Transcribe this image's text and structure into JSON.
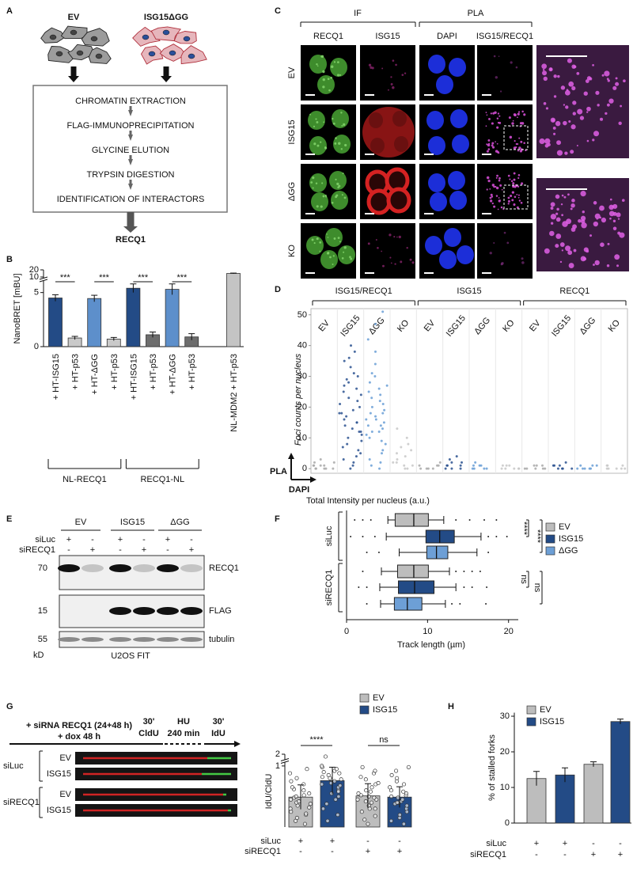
{
  "panel_labels": [
    "A",
    "B",
    "C",
    "D",
    "E",
    "F",
    "G",
    "H"
  ],
  "panel_a": {
    "groups": [
      "EV",
      "ISG15ΔGG"
    ],
    "steps": [
      "CHROMATIN EXTRACTION",
      "FLAG-IMMUNOPRECIPITATION",
      "GLYCINE ELUTION",
      "TRYPSIN DIGESTION",
      "IDENTIFICATION OF INTERACTORS"
    ],
    "result": "RECQ1"
  },
  "panel_c": {
    "sections": [
      "IF",
      "PLA"
    ],
    "columns": [
      "RECQ1",
      "ISG15",
      "DAPI",
      "ISG15/RECQ1"
    ],
    "rows": [
      "EV",
      "ISG15",
      "ΔGG",
      "KO"
    ]
  },
  "panel_e": {
    "conditions": [
      "EV",
      "ISG15",
      "ΔGG"
    ],
    "rows": [
      {
        "name": "siLuc",
        "signs": [
          "+",
          "-",
          "+",
          "-",
          "+",
          "-"
        ]
      },
      {
        "name": "siRECQ1",
        "signs": [
          "-",
          "+",
          "-",
          "+",
          "-",
          "+"
        ]
      }
    ],
    "markers": [
      "70",
      "15",
      "55"
    ],
    "unit": "kD",
    "blots": [
      "RECQ1",
      "FLAG",
      "tubulin"
    ],
    "cell_line": "U2OS FIT"
  },
  "panel_g": {
    "treatment": [
      "+ siRNA RECQ1 (24+48 h)",
      "+ dox 48 h"
    ],
    "steps": [
      {
        "time": "30'",
        "label": "CldU"
      },
      {
        "time": "HU",
        "label": "240 min"
      },
      {
        "time": "30'",
        "label": "IdU"
      }
    ],
    "groups": [
      {
        "name": "siLuc",
        "rows": [
          "EV",
          "ISG15"
        ]
      },
      {
        "name": "siRECQ1",
        "rows": [
          "EV",
          "ISG15"
        ]
      }
    ]
  },
  "chart_data": [
    {
      "type": "bar",
      "ylabel": "NanoBRET [mBU]",
      "categories": [
        "+ HT-ISG15",
        "+ HT-p53",
        "+ HT-ΔGG",
        "+ HT-p53",
        "+ HT-ISG15",
        "+ HT-p53",
        "+ HT-ΔGG",
        "+ HT-p53",
        "NL-MDM2 + HT-p53"
      ],
      "values": [
        4.5,
        0.8,
        4.45,
        0.7,
        5.4,
        1.1,
        5.3,
        0.9,
        15
      ],
      "errors": [
        0.3,
        0.15,
        0.3,
        0.15,
        0.4,
        0.25,
        0.5,
        0.3,
        0.5
      ],
      "colors": [
        "#234b86",
        "#c9c9c9",
        "#5d8fcb",
        "#c9c9c9",
        "#234b86",
        "#6d6d6d",
        "#5d8fcb",
        "#6d6d6d",
        "#c4c4c4"
      ],
      "ylim": [
        0,
        20
      ],
      "ybreak": [
        6,
        10
      ],
      "yticks": [
        0,
        5,
        10,
        20
      ],
      "groups": [
        "NL-RECQ1",
        "RECQ1-NL"
      ],
      "annotations": [
        "***",
        "***",
        "***",
        "***"
      ]
    },
    {
      "type": "strip",
      "y_marker": "PLA",
      "ylabel": "Foci counts per nucleus",
      "x_marker": "DAPI",
      "xlabel": "Total Intensity per nucleus (a.u.)",
      "ylim": [
        -1.5,
        52
      ],
      "yticks": [
        0,
        10,
        20,
        30,
        40,
        50
      ],
      "colors": [
        "#a9a9a9",
        "#2b5290",
        "#6a9fd6",
        "#c8c8c8"
      ],
      "groups": [
        {
          "name": "ISG15/RECQ1",
          "categories": [
            "EV",
            "ISG15",
            "ΔGG",
            "KO"
          ],
          "values": [
            [
              0,
              1,
              0,
              2,
              1,
              0,
              3,
              1,
              0,
              2,
              1,
              0
            ],
            [
              0,
              2,
              5,
              8,
              12,
              15,
              18,
              20,
              22,
              25,
              28,
              30,
              33,
              36,
              40,
              10,
              14,
              17,
              19,
              21,
              23,
              16,
              13,
              11,
              9,
              7,
              6,
              4,
              3,
              1,
              24,
              26,
              27,
              29,
              31,
              35,
              38,
              12,
              15,
              18
            ],
            [
              0,
              3,
              6,
              9,
              12,
              14,
              16,
              18,
              20,
              22,
              24,
              26,
              28,
              31,
              34,
              38,
              42,
              47,
              51,
              10,
              13,
              15,
              17,
              19,
              21,
              23,
              8,
              5,
              2,
              1,
              11,
              14,
              16,
              25,
              27,
              30,
              12,
              18
            ],
            [
              0,
              1,
              2,
              4,
              6,
              8,
              10,
              3,
              5,
              1,
              2,
              0,
              7,
              13
            ]
          ]
        },
        {
          "name": "ISG15",
          "categories": [
            "EV",
            "ISG15",
            "ΔGG",
            "KO"
          ],
          "values": [
            [
              0,
              1,
              0,
              1,
              0,
              2,
              1,
              0
            ],
            [
              0,
              1,
              2,
              3,
              1,
              0,
              2,
              4,
              1,
              0
            ],
            [
              0,
              1,
              0,
              2,
              1,
              0,
              1,
              0
            ],
            [
              0,
              1,
              0,
              1,
              0,
              0,
              1,
              0
            ]
          ]
        },
        {
          "name": "RECQ1",
          "categories": [
            "EV",
            "ISG15",
            "ΔGG",
            "KO"
          ],
          "values": [
            [
              0,
              1,
              0,
              1,
              0,
              1,
              0,
              0
            ],
            [
              0,
              1,
              0,
              1,
              2,
              0,
              1,
              0
            ],
            [
              0,
              0,
              1,
              0,
              1,
              0,
              1,
              0
            ],
            [
              0,
              1,
              0,
              0,
              1,
              0,
              1,
              0
            ]
          ]
        }
      ]
    },
    {
      "type": "box",
      "xlabel": "Track length (µm)",
      "xlim": [
        0,
        21.2
      ],
      "xticks": [
        0,
        10,
        20
      ],
      "groups": [
        "siLuc",
        "siRECQ1"
      ],
      "series": [
        {
          "name": "EV",
          "color": "#bdbdbd"
        },
        {
          "name": "ISG15",
          "color": "#234b86"
        },
        {
          "name": "ΔGG",
          "color": "#6d9fd6"
        }
      ],
      "boxes": [
        {
          "min": 5.1,
          "q1": 6.0,
          "median": 8.3,
          "q3": 10.1,
          "max": 12.0,
          "outliers": [
            1.0,
            2.0,
            3.0,
            13.5,
            15.2,
            17.0,
            18.5
          ]
        },
        {
          "min": 4.9,
          "q1": 9.8,
          "median": 11.5,
          "q3": 13.3,
          "max": 16.6,
          "outliers": [
            0.5,
            2.0,
            3.5,
            17.5,
            18.5,
            19.8
          ]
        },
        {
          "min": 6.5,
          "q1": 9.9,
          "median": 11.1,
          "q3": 12.5,
          "max": 16.1,
          "outliers": [
            2.5,
            4.0,
            17.5
          ]
        },
        {
          "min": 4.3,
          "q1": 6.3,
          "median": 8.3,
          "q3": 10.1,
          "max": 12.7,
          "outliers": [
            2.0,
            13.5,
            14.5,
            15.5,
            16.5
          ]
        },
        {
          "min": 4.1,
          "q1": 6.4,
          "median": 8.4,
          "q3": 10.8,
          "max": 13.5,
          "outliers": [
            1.5,
            2.5,
            14.5,
            15.5,
            17.3
          ]
        },
        {
          "min": 4.2,
          "q1": 5.9,
          "median": 7.5,
          "q3": 9.3,
          "max": 12.2,
          "outliers": [
            2.5,
            13.0,
            14.0,
            17.2
          ]
        }
      ],
      "annotations": [
        "****",
        "****",
        "ns",
        "ns"
      ]
    },
    {
      "type": "bar",
      "ylabel": "IdU/CldU",
      "ylim": [
        0,
        2
      ],
      "ybreak": [
        1.05,
        1.9
      ],
      "yticks": [
        1,
        2
      ],
      "values": [
        0.49,
        0.76,
        0.51,
        0.49
      ],
      "errors": [
        0.2,
        0.22,
        0.2,
        0.17
      ],
      "colors": [
        "#bdbdbd",
        "#234b86",
        "#bdbdbd",
        "#234b86"
      ],
      "points": [
        [
          0.05,
          0.1,
          0.15,
          0.2,
          0.22,
          0.25,
          0.3,
          0.32,
          0.35,
          0.38,
          0.4,
          0.42,
          0.45,
          0.48,
          0.5,
          0.52,
          0.55,
          0.6,
          0.62,
          0.65,
          0.7,
          0.75,
          0.8,
          0.88,
          0.95
        ],
        [
          0.1,
          0.2,
          0.3,
          0.38,
          0.45,
          0.5,
          0.55,
          0.6,
          0.65,
          0.7,
          0.72,
          0.75,
          0.78,
          0.8,
          0.82,
          0.85,
          0.88,
          0.9,
          0.92,
          0.95,
          0.98,
          1.0,
          0.68,
          0.58,
          1.95
        ],
        [
          0.05,
          0.12,
          0.18,
          0.25,
          0.3,
          0.35,
          0.4,
          0.42,
          0.45,
          0.48,
          0.5,
          0.52,
          0.55,
          0.58,
          0.6,
          0.65,
          0.7,
          0.72,
          0.78,
          0.82,
          0.88,
          0.92,
          0.98,
          0.3,
          0.45
        ],
        [
          0.05,
          0.1,
          0.15,
          0.2,
          0.25,
          0.3,
          0.35,
          0.38,
          0.4,
          0.42,
          0.45,
          0.48,
          0.5,
          0.52,
          0.55,
          0.58,
          0.6,
          0.65,
          0.7,
          0.75,
          0.8,
          0.85,
          0.92,
          0.98,
          0.4
        ]
      ],
      "legend": [
        {
          "name": "EV",
          "color": "#bdbdbd"
        },
        {
          "name": "ISG15",
          "color": "#234b86"
        }
      ],
      "conditions": [
        {
          "name": "siLuc",
          "signs": [
            "+",
            "+",
            "-",
            "-"
          ]
        },
        {
          "name": "siRECQ1",
          "signs": [
            "-",
            "-",
            "+",
            "+"
          ]
        }
      ],
      "annotations": [
        "****",
        "ns"
      ]
    },
    {
      "type": "bar",
      "ylabel": "% of stalled forks",
      "ylim": [
        0,
        31
      ],
      "yticks": [
        0,
        10,
        20,
        30
      ],
      "values": [
        12.5,
        13.5,
        16.5,
        28.5
      ],
      "errors": [
        2,
        2,
        0.7,
        0.7
      ],
      "colors": [
        "#bdbdbd",
        "#234b86",
        "#bdbdbd",
        "#234b86"
      ],
      "legend": [
        {
          "name": "EV",
          "color": "#bdbdbd"
        },
        {
          "name": "ISG15",
          "color": "#234b86"
        }
      ],
      "conditions": [
        {
          "name": "siLuc",
          "signs": [
            "+",
            "+",
            "-",
            "-"
          ]
        },
        {
          "name": "siRECQ1",
          "signs": [
            "-",
            "-",
            "+",
            "+"
          ]
        }
      ]
    }
  ]
}
